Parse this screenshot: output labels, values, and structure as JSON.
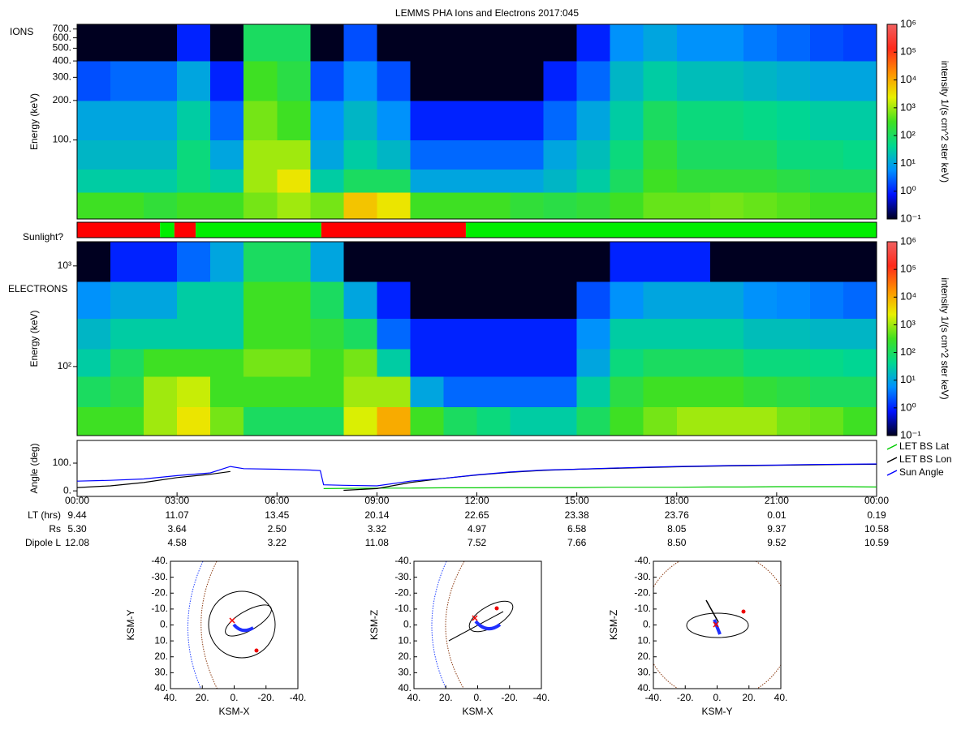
{
  "chart_data": [
    {
      "type": "heatmap",
      "title": "LEMMS PHA Ions and Electrons  2017:045",
      "label": "IONS",
      "ylabel": "Energy (keV)",
      "log_y": true,
      "ylim": [
        25,
        760
      ],
      "yticks": [
        {
          "value": 100,
          "label": "100."
        },
        {
          "value": 200,
          "label": "200."
        },
        {
          "value": 300,
          "label": "300."
        },
        {
          "value": 400,
          "label": "400."
        },
        {
          "value": 500,
          "label": "500."
        },
        {
          "value": 600,
          "label": "600."
        },
        {
          "value": 700,
          "label": "700."
        }
      ],
      "x_bins": [
        0,
        1,
        2,
        3,
        4,
        5,
        6,
        7,
        8,
        9,
        10,
        11,
        12,
        13,
        14,
        15,
        16,
        17,
        18,
        19,
        20,
        21,
        22,
        23,
        24
      ],
      "y_bins": [
        25,
        40,
        60,
        100,
        200,
        400,
        760
      ],
      "z": [
        [
          300,
          300,
          200,
          300,
          300,
          600,
          1000,
          600,
          6000,
          3000,
          300,
          300,
          300,
          200,
          160,
          200,
          300,
          500,
          500,
          600,
          500,
          400,
          300,
          300
        ],
        [
          30,
          30,
          30,
          60,
          30,
          1000,
          3000,
          30,
          100,
          100,
          10,
          10,
          10,
          10,
          16,
          30,
          100,
          300,
          200,
          200,
          200,
          160,
          100,
          100
        ],
        [
          16,
          16,
          16,
          60,
          10,
          1000,
          1000,
          10,
          30,
          16,
          3,
          3,
          3,
          3,
          10,
          20,
          60,
          200,
          100,
          100,
          100,
          60,
          60,
          50
        ],
        [
          10,
          10,
          10,
          30,
          3,
          600,
          300,
          6,
          16,
          6,
          1,
          1,
          1,
          1,
          3,
          10,
          30,
          100,
          60,
          60,
          50,
          40,
          30,
          30
        ],
        [
          2,
          3,
          3,
          10,
          1,
          300,
          160,
          2,
          6,
          2,
          0.1,
          0.1,
          0.1,
          0.1,
          1,
          3,
          16,
          30,
          20,
          20,
          16,
          13,
          10,
          10
        ],
        [
          0.1,
          0.1,
          0.1,
          1,
          0.1,
          100,
          100,
          0.1,
          2,
          0.1,
          0.1,
          0.1,
          0.1,
          0.1,
          0.1,
          1,
          6,
          10,
          6,
          6,
          4,
          3,
          2,
          1.6
        ]
      ],
      "colorbar": {
        "label": "intensity 1/(s cm^2 ster keV)",
        "lim": [
          0.1,
          1000000
        ],
        "ticks": [
          {
            "value": 0.1,
            "label": "10⁻¹"
          },
          {
            "value": 1,
            "label": "10⁰"
          },
          {
            "value": 10,
            "label": "10¹"
          },
          {
            "value": 100,
            "label": "10²"
          },
          {
            "value": 1000,
            "label": "10³"
          },
          {
            "value": 10000,
            "label": "10⁴"
          },
          {
            "value": 100000,
            "label": "10⁵"
          },
          {
            "value": 1000000,
            "label": "10⁶"
          }
        ],
        "colormap": [
          "#000020",
          "#0010ff",
          "#0090ff",
          "#00d890",
          "#40e020",
          "#e8f000",
          "#ff9000",
          "#ff2a1a",
          "#f06060"
        ]
      }
    },
    {
      "type": "timeline",
      "label": "Sunlight?",
      "bins": [
        0,
        2.49,
        2.92,
        3.56,
        7.33,
        11.67,
        24
      ],
      "colors": [
        "#ff0000",
        "#00ee00",
        "#ff0000",
        "#00ee00",
        "#ff0000",
        "#00ee00"
      ]
    },
    {
      "type": "heatmap",
      "label": "ELECTRONS",
      "ylabel": "Energy (keV)",
      "log_y": true,
      "ylim": [
        20.6,
        1740
      ],
      "yticks": [
        {
          "value": 100,
          "label": "10²"
        },
        {
          "value": 1000,
          "label": "10³"
        }
      ],
      "x_bins": [
        0,
        1,
        2,
        3,
        4,
        5,
        6,
        7,
        8,
        9,
        10,
        11,
        12,
        13,
        14,
        15,
        16,
        17,
        18,
        19,
        20,
        21,
        22,
        23,
        24
      ],
      "y_bins": [
        20.6,
        40,
        80,
        150,
        300,
        700,
        1740
      ],
      "z": [
        [
          300,
          300,
          1000,
          3000,
          600,
          100,
          100,
          100,
          2000,
          10000,
          300,
          100,
          60,
          30,
          30,
          100,
          300,
          600,
          1000,
          1000,
          1000,
          600,
          500,
          300
        ],
        [
          100,
          160,
          1000,
          1600,
          300,
          300,
          300,
          300,
          1000,
          1000,
          10,
          3,
          3,
          3,
          3,
          30,
          160,
          300,
          300,
          300,
          200,
          160,
          100,
          100
        ],
        [
          30,
          100,
          300,
          300,
          300,
          600,
          600,
          300,
          600,
          30,
          1,
          1,
          1,
          1,
          1,
          10,
          60,
          100,
          100,
          100,
          60,
          60,
          50,
          40
        ],
        [
          16,
          30,
          30,
          30,
          30,
          300,
          300,
          200,
          100,
          3,
          1,
          1,
          1,
          1,
          1,
          6,
          30,
          30,
          30,
          30,
          20,
          20,
          16,
          16
        ],
        [
          6,
          10,
          10,
          30,
          30,
          300,
          300,
          100,
          10,
          1,
          0.1,
          0.1,
          0.1,
          0.1,
          0.1,
          2,
          6,
          10,
          10,
          10,
          6,
          5,
          4,
          3
        ],
        [
          0.1,
          1,
          1,
          3,
          10,
          100,
          100,
          10,
          0.1,
          0.1,
          0.1,
          0.1,
          0.1,
          0.1,
          0.1,
          0.1,
          1,
          1,
          1,
          0.1,
          0.1,
          0.1,
          0.1,
          0.1
        ]
      ],
      "colorbar": {
        "label": "intensity 1/(s cm^2 ster keV)",
        "lim": [
          0.1,
          1000000
        ],
        "ticks": [
          {
            "value": 0.1,
            "label": "10⁻¹"
          },
          {
            "value": 1,
            "label": "10⁰"
          },
          {
            "value": 10,
            "label": "10¹"
          },
          {
            "value": 100,
            "label": "10²"
          },
          {
            "value": 1000,
            "label": "10³"
          },
          {
            "value": 10000,
            "label": "10⁴"
          },
          {
            "value": 100000,
            "label": "10⁵"
          },
          {
            "value": 1000000,
            "label": "10⁶"
          }
        ],
        "colormap": [
          "#000020",
          "#0010ff",
          "#0090ff",
          "#00d890",
          "#40e020",
          "#e8f000",
          "#ff9000",
          "#ff2a1a",
          "#f06060"
        ]
      }
    },
    {
      "type": "line",
      "ylabel": "Angle (deg)",
      "xlim": [
        0,
        24
      ],
      "ylim": [
        -20,
        182
      ],
      "xticks": [
        {
          "value": 0,
          "label": "00:00"
        },
        {
          "value": 3,
          "label": "03:00"
        },
        {
          "value": 6,
          "label": "06:00"
        },
        {
          "value": 9,
          "label": "09:00"
        },
        {
          "value": 12,
          "label": "12:00"
        },
        {
          "value": 15,
          "label": "15:00"
        },
        {
          "value": 18,
          "label": "18:00"
        },
        {
          "value": 21,
          "label": "21:00"
        },
        {
          "value": 24,
          "label": "00:00"
        }
      ],
      "yticks": [
        {
          "value": 0,
          "label": "0."
        },
        {
          "value": 100,
          "label": "100."
        }
      ],
      "x": [
        0,
        1,
        2,
        3,
        4,
        4.6,
        5,
        6,
        7,
        7.3,
        7.4,
        8,
        9,
        10,
        11,
        12,
        13,
        14,
        15,
        16,
        17,
        18,
        19,
        20,
        21,
        22,
        23,
        24
      ],
      "series": [
        {
          "name": "LET BS Lat",
          "color": "#00cc00",
          "values": [
            null,
            null,
            null,
            null,
            null,
            null,
            null,
            null,
            null,
            null,
            8,
            9,
            10,
            10,
            11,
            11,
            12,
            12,
            12,
            13,
            13,
            13,
            14,
            14,
            15,
            15,
            15,
            14
          ]
        },
        {
          "name": "LET BS Lon",
          "color": "#000000",
          "values": [
            12,
            18,
            30,
            48,
            60,
            70,
            null,
            null,
            null,
            null,
            null,
            2,
            8,
            30,
            45,
            57,
            67,
            74,
            78,
            81,
            84,
            87,
            89,
            91,
            92,
            94,
            95,
            96
          ]
        },
        {
          "name": "Sun Angle",
          "color": "#0000ff",
          "values": [
            35,
            38,
            43,
            55,
            65,
            88,
            80,
            78,
            75,
            73,
            22,
            20,
            18,
            35,
            45,
            58,
            68,
            75,
            78,
            82,
            85,
            88,
            90,
            92,
            93,
            95,
            96,
            97
          ]
        }
      ],
      "legend": "right"
    },
    {
      "type": "orbit",
      "xlabel": "KSM-X",
      "ylabel": "KSM-Y",
      "xlim": [
        40,
        -40
      ],
      "ylim": [
        40,
        -40
      ],
      "xticks": [
        {
          "value": 40,
          "label": "40."
        },
        {
          "value": 20,
          "label": "20."
        },
        {
          "value": 0,
          "label": "0."
        },
        {
          "value": -20,
          "label": "-20."
        },
        {
          "value": -40,
          "label": "-40."
        }
      ],
      "yticks": [
        {
          "value": -40,
          "label": "-40."
        },
        {
          "value": -30,
          "label": "-30."
        },
        {
          "value": -20,
          "label": "-20."
        },
        {
          "value": -10,
          "label": "-10."
        },
        {
          "value": 0,
          "label": "0."
        },
        {
          "value": 10,
          "label": "10."
        },
        {
          "value": 20,
          "label": "20."
        },
        {
          "value": 30,
          "label": "30."
        },
        {
          "value": 40,
          "label": "40."
        }
      ]
    },
    {
      "type": "orbit",
      "xlabel": "KSM-X",
      "ylabel": "KSM-Z",
      "xlim": [
        40,
        -40
      ],
      "ylim": [
        40,
        -40
      ],
      "xticks": [
        {
          "value": 40,
          "label": "40."
        },
        {
          "value": 20,
          "label": "20."
        },
        {
          "value": 0,
          "label": "0."
        },
        {
          "value": -20,
          "label": "-20."
        },
        {
          "value": -40,
          "label": "-40."
        }
      ],
      "yticks": [
        {
          "value": -40,
          "label": "-40."
        },
        {
          "value": -30,
          "label": "-30."
        },
        {
          "value": -20,
          "label": "-20."
        },
        {
          "value": -10,
          "label": "-10."
        },
        {
          "value": 0,
          "label": "0."
        },
        {
          "value": 10,
          "label": "10."
        },
        {
          "value": 20,
          "label": "20."
        },
        {
          "value": 30,
          "label": "30."
        },
        {
          "value": 40,
          "label": "40."
        }
      ]
    },
    {
      "type": "orbit",
      "xlabel": "KSM-Y",
      "ylabel": "KSM-Z",
      "xlim": [
        -40,
        40
      ],
      "ylim": [
        40,
        -40
      ],
      "xticks": [
        {
          "value": -40,
          "label": "-40."
        },
        {
          "value": -20,
          "label": "-20."
        },
        {
          "value": 0,
          "label": "0."
        },
        {
          "value": 20,
          "label": "20."
        },
        {
          "value": 40,
          "label": "40."
        }
      ],
      "yticks": [
        {
          "value": -40,
          "label": "-40."
        },
        {
          "value": -30,
          "label": "-30."
        },
        {
          "value": -20,
          "label": "-20."
        },
        {
          "value": -10,
          "label": "-10."
        },
        {
          "value": 0,
          "label": "0."
        },
        {
          "value": 10,
          "label": "10."
        },
        {
          "value": 20,
          "label": "20."
        },
        {
          "value": 30,
          "label": "30."
        },
        {
          "value": 40,
          "label": "40."
        }
      ]
    }
  ],
  "ephemeris": {
    "rows": [
      {
        "label": "LT (hrs)",
        "values": [
          "9.44",
          "11.07",
          "13.45",
          "20.14",
          "22.65",
          "23.38",
          "23.76",
          "0.01",
          "0.19"
        ]
      },
      {
        "label": "Rs",
        "values": [
          "5.30",
          "3.64",
          "2.50",
          "3.32",
          "4.97",
          "6.58",
          "8.05",
          "9.37",
          "10.58"
        ]
      },
      {
        "label": "Dipole L",
        "values": [
          "12.08",
          "4.58",
          "3.22",
          "11.08",
          "7.52",
          "7.66",
          "8.50",
          "9.52",
          "10.59"
        ]
      }
    ]
  }
}
